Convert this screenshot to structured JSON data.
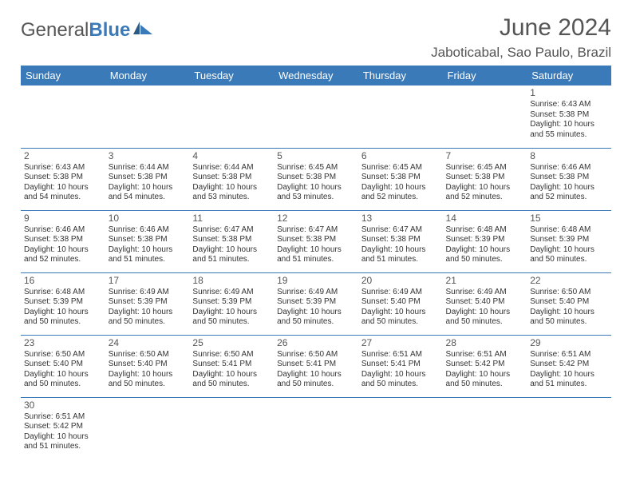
{
  "brand": {
    "part1": "General",
    "part2": "Blue"
  },
  "title": "June 2024",
  "location": "Jaboticabal, Sao Paulo, Brazil",
  "colors": {
    "header_bg": "#3a7ab8",
    "text": "#333333",
    "title": "#555555"
  },
  "weekdays": [
    "Sunday",
    "Monday",
    "Tuesday",
    "Wednesday",
    "Thursday",
    "Friday",
    "Saturday"
  ],
  "weeks": [
    [
      null,
      null,
      null,
      null,
      null,
      null,
      {
        "n": "1",
        "sr": "Sunrise: 6:43 AM",
        "ss": "Sunset: 5:38 PM",
        "d1": "Daylight: 10 hours",
        "d2": "and 55 minutes."
      }
    ],
    [
      {
        "n": "2",
        "sr": "Sunrise: 6:43 AM",
        "ss": "Sunset: 5:38 PM",
        "d1": "Daylight: 10 hours",
        "d2": "and 54 minutes."
      },
      {
        "n": "3",
        "sr": "Sunrise: 6:44 AM",
        "ss": "Sunset: 5:38 PM",
        "d1": "Daylight: 10 hours",
        "d2": "and 54 minutes."
      },
      {
        "n": "4",
        "sr": "Sunrise: 6:44 AM",
        "ss": "Sunset: 5:38 PM",
        "d1": "Daylight: 10 hours",
        "d2": "and 53 minutes."
      },
      {
        "n": "5",
        "sr": "Sunrise: 6:45 AM",
        "ss": "Sunset: 5:38 PM",
        "d1": "Daylight: 10 hours",
        "d2": "and 53 minutes."
      },
      {
        "n": "6",
        "sr": "Sunrise: 6:45 AM",
        "ss": "Sunset: 5:38 PM",
        "d1": "Daylight: 10 hours",
        "d2": "and 52 minutes."
      },
      {
        "n": "7",
        "sr": "Sunrise: 6:45 AM",
        "ss": "Sunset: 5:38 PM",
        "d1": "Daylight: 10 hours",
        "d2": "and 52 minutes."
      },
      {
        "n": "8",
        "sr": "Sunrise: 6:46 AM",
        "ss": "Sunset: 5:38 PM",
        "d1": "Daylight: 10 hours",
        "d2": "and 52 minutes."
      }
    ],
    [
      {
        "n": "9",
        "sr": "Sunrise: 6:46 AM",
        "ss": "Sunset: 5:38 PM",
        "d1": "Daylight: 10 hours",
        "d2": "and 52 minutes."
      },
      {
        "n": "10",
        "sr": "Sunrise: 6:46 AM",
        "ss": "Sunset: 5:38 PM",
        "d1": "Daylight: 10 hours",
        "d2": "and 51 minutes."
      },
      {
        "n": "11",
        "sr": "Sunrise: 6:47 AM",
        "ss": "Sunset: 5:38 PM",
        "d1": "Daylight: 10 hours",
        "d2": "and 51 minutes."
      },
      {
        "n": "12",
        "sr": "Sunrise: 6:47 AM",
        "ss": "Sunset: 5:38 PM",
        "d1": "Daylight: 10 hours",
        "d2": "and 51 minutes."
      },
      {
        "n": "13",
        "sr": "Sunrise: 6:47 AM",
        "ss": "Sunset: 5:38 PM",
        "d1": "Daylight: 10 hours",
        "d2": "and 51 minutes."
      },
      {
        "n": "14",
        "sr": "Sunrise: 6:48 AM",
        "ss": "Sunset: 5:39 PM",
        "d1": "Daylight: 10 hours",
        "d2": "and 50 minutes."
      },
      {
        "n": "15",
        "sr": "Sunrise: 6:48 AM",
        "ss": "Sunset: 5:39 PM",
        "d1": "Daylight: 10 hours",
        "d2": "and 50 minutes."
      }
    ],
    [
      {
        "n": "16",
        "sr": "Sunrise: 6:48 AM",
        "ss": "Sunset: 5:39 PM",
        "d1": "Daylight: 10 hours",
        "d2": "and 50 minutes."
      },
      {
        "n": "17",
        "sr": "Sunrise: 6:49 AM",
        "ss": "Sunset: 5:39 PM",
        "d1": "Daylight: 10 hours",
        "d2": "and 50 minutes."
      },
      {
        "n": "18",
        "sr": "Sunrise: 6:49 AM",
        "ss": "Sunset: 5:39 PM",
        "d1": "Daylight: 10 hours",
        "d2": "and 50 minutes."
      },
      {
        "n": "19",
        "sr": "Sunrise: 6:49 AM",
        "ss": "Sunset: 5:39 PM",
        "d1": "Daylight: 10 hours",
        "d2": "and 50 minutes."
      },
      {
        "n": "20",
        "sr": "Sunrise: 6:49 AM",
        "ss": "Sunset: 5:40 PM",
        "d1": "Daylight: 10 hours",
        "d2": "and 50 minutes."
      },
      {
        "n": "21",
        "sr": "Sunrise: 6:49 AM",
        "ss": "Sunset: 5:40 PM",
        "d1": "Daylight: 10 hours",
        "d2": "and 50 minutes."
      },
      {
        "n": "22",
        "sr": "Sunrise: 6:50 AM",
        "ss": "Sunset: 5:40 PM",
        "d1": "Daylight: 10 hours",
        "d2": "and 50 minutes."
      }
    ],
    [
      {
        "n": "23",
        "sr": "Sunrise: 6:50 AM",
        "ss": "Sunset: 5:40 PM",
        "d1": "Daylight: 10 hours",
        "d2": "and 50 minutes."
      },
      {
        "n": "24",
        "sr": "Sunrise: 6:50 AM",
        "ss": "Sunset: 5:40 PM",
        "d1": "Daylight: 10 hours",
        "d2": "and 50 minutes."
      },
      {
        "n": "25",
        "sr": "Sunrise: 6:50 AM",
        "ss": "Sunset: 5:41 PM",
        "d1": "Daylight: 10 hours",
        "d2": "and 50 minutes."
      },
      {
        "n": "26",
        "sr": "Sunrise: 6:50 AM",
        "ss": "Sunset: 5:41 PM",
        "d1": "Daylight: 10 hours",
        "d2": "and 50 minutes."
      },
      {
        "n": "27",
        "sr": "Sunrise: 6:51 AM",
        "ss": "Sunset: 5:41 PM",
        "d1": "Daylight: 10 hours",
        "d2": "and 50 minutes."
      },
      {
        "n": "28",
        "sr": "Sunrise: 6:51 AM",
        "ss": "Sunset: 5:42 PM",
        "d1": "Daylight: 10 hours",
        "d2": "and 50 minutes."
      },
      {
        "n": "29",
        "sr": "Sunrise: 6:51 AM",
        "ss": "Sunset: 5:42 PM",
        "d1": "Daylight: 10 hours",
        "d2": "and 51 minutes."
      }
    ],
    [
      {
        "n": "30",
        "sr": "Sunrise: 6:51 AM",
        "ss": "Sunset: 5:42 PM",
        "d1": "Daylight: 10 hours",
        "d2": "and 51 minutes."
      },
      null,
      null,
      null,
      null,
      null,
      null
    ]
  ]
}
